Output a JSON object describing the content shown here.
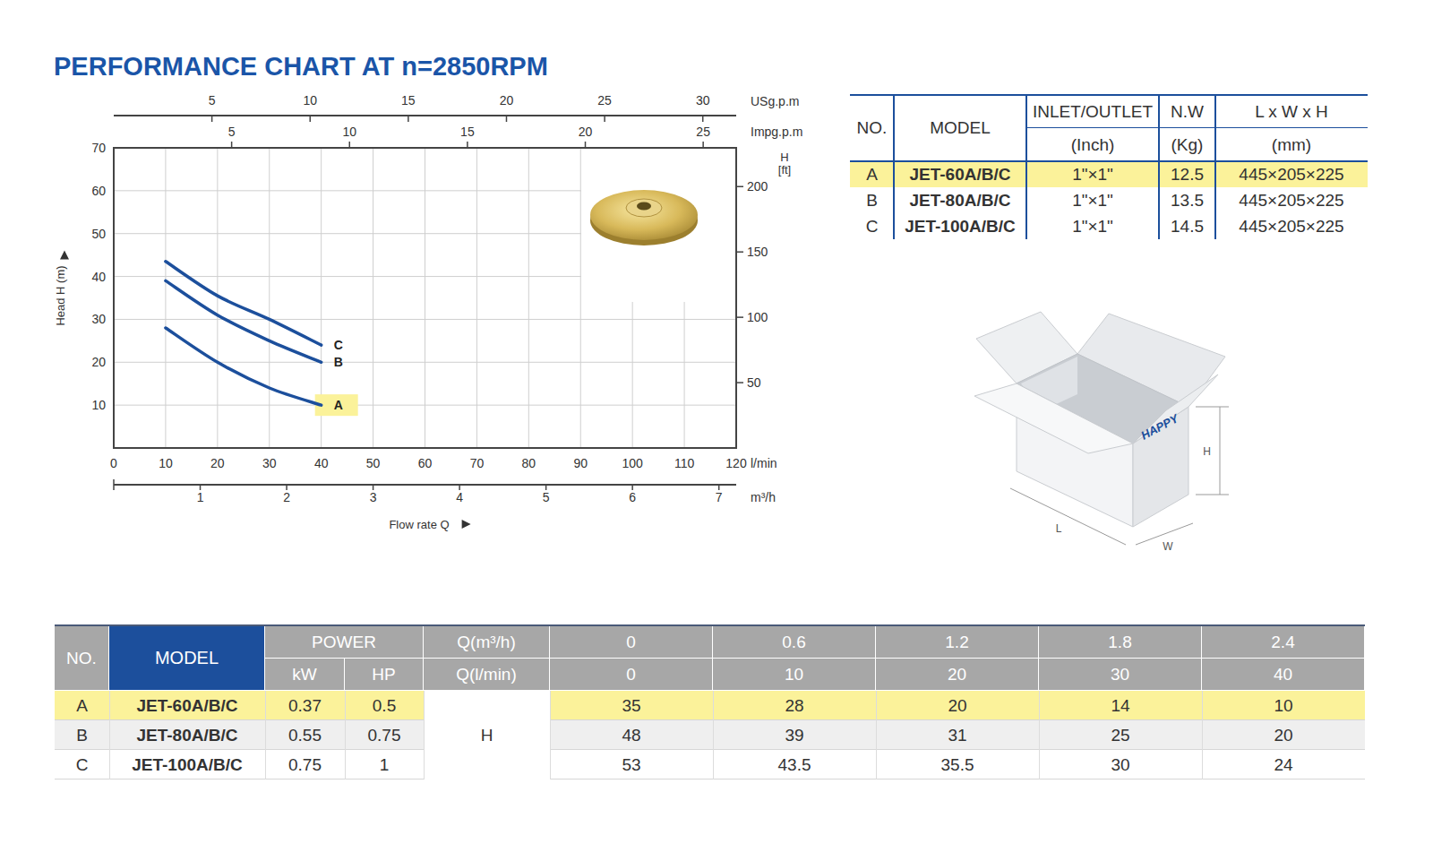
{
  "title": "PERFORMANCE CHART AT n=2850RPM",
  "chart_data": {
    "type": "line",
    "x_label": "Flow rate Q",
    "x_unit": "l/min",
    "y_label": "Head H (m)",
    "y2_label": "H",
    "y2_unit": "[ft]",
    "x": [
      10,
      20,
      30,
      40
    ],
    "series": [
      {
        "name": "A",
        "color": "#1c4f9c",
        "values": [
          28,
          20,
          14,
          10
        ]
      },
      {
        "name": "B",
        "color": "#1c4f9c",
        "values": [
          39,
          31,
          25,
          20
        ]
      },
      {
        "name": "C",
        "color": "#1c4f9c",
        "values": [
          43.5,
          35.5,
          30,
          24
        ]
      }
    ],
    "xlim": [
      0,
      120
    ],
    "xticks": [
      0,
      10,
      20,
      30,
      40,
      50,
      60,
      70,
      80,
      90,
      100,
      110,
      120
    ],
    "ylim": [
      0,
      70
    ],
    "yticks": [
      10,
      20,
      30,
      40,
      50,
      60,
      70
    ],
    "y2lim": [
      0,
      229.66
    ],
    "y2ticks": [
      50,
      100,
      150,
      200
    ],
    "x2_unit": "USg.p.m",
    "x2lim": [
      0,
      31.7
    ],
    "x2ticks": [
      5,
      10,
      15,
      20,
      25,
      30
    ],
    "x3_unit": "Impg.p.m",
    "x3lim": [
      0,
      26.4
    ],
    "x3ticks": [
      5,
      10,
      15,
      20,
      25
    ],
    "x4_unit": "m³/h",
    "x4lim": [
      0,
      7.2
    ],
    "x4ticks": [
      1,
      2,
      3,
      4,
      5,
      6,
      7
    ],
    "grid": true
  },
  "spec_table": {
    "columns": [
      {
        "title": "NO."
      },
      {
        "title": "MODEL"
      },
      {
        "title": "INLET/OUTLET",
        "unit": "(Inch)"
      },
      {
        "title": "N.W",
        "unit": "(Kg)"
      },
      {
        "title": "L x W x H",
        "unit": "(mm)"
      }
    ],
    "rows": [
      [
        "A",
        "JET-60A/B/C",
        "1\"×1\"",
        "12.5",
        "445×205×225"
      ],
      [
        "B",
        "JET-80A/B/C",
        "1\"×1\"",
        "13.5",
        "445×205×225"
      ],
      [
        "C",
        "JET-100A/B/C",
        "1\"×1\"",
        "14.5",
        "445×205×225"
      ]
    ],
    "highlight_row": 0
  },
  "perf_table": {
    "head": {
      "no": "NO.",
      "model": "MODEL",
      "power": "POWER",
      "kw": "kW",
      "hp": "HP",
      "q_m3h": "Q(m³/h)",
      "q_lmin": "Q(l/min)",
      "h": "H"
    },
    "q_m3h": [
      "0",
      "0.6",
      "1.2",
      "1.8",
      "2.4"
    ],
    "q_lmin": [
      "0",
      "10",
      "20",
      "30",
      "40"
    ],
    "rows": [
      {
        "no": "A",
        "model": "JET-60A/B/C",
        "kw": "0.37",
        "hp": "0.5",
        "h": [
          "35",
          "28",
          "20",
          "14",
          "10"
        ]
      },
      {
        "no": "B",
        "model": "JET-80A/B/C",
        "kw": "0.55",
        "hp": "0.75",
        "h": [
          "48",
          "39",
          "31",
          "25",
          "20"
        ]
      },
      {
        "no": "C",
        "model": "JET-100A/B/C",
        "kw": "0.75",
        "hp": "1",
        "h": [
          "53",
          "43.5",
          "35.5",
          "30",
          "24"
        ]
      }
    ],
    "highlight_row": 0
  },
  "box": {
    "brand": "HAPPY",
    "dims": [
      "L",
      "W",
      "H"
    ]
  }
}
